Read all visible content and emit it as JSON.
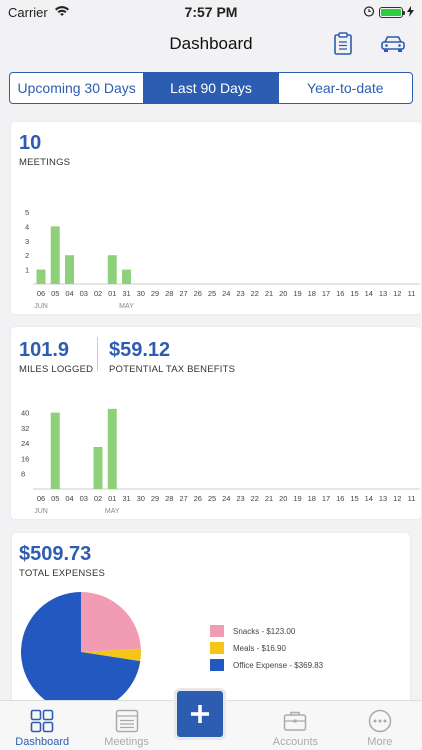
{
  "status": {
    "carrier": "Carrier",
    "time": "7:57 PM"
  },
  "nav": {
    "title": "Dashboard"
  },
  "segments": [
    {
      "label": "Upcoming 30 Days",
      "active": false
    },
    {
      "label": "Last 90 Days",
      "active": true
    },
    {
      "label": "Year-to-date",
      "active": false
    }
  ],
  "meetings": {
    "count": "10",
    "label": "MEETINGS"
  },
  "miles": {
    "value": "101.9",
    "label": "MILES LOGGED",
    "tax_value": "$59.12",
    "tax_label": "POTENTIAL TAX BENEFITS"
  },
  "expenses": {
    "total": "$509.73",
    "label": "TOTAL EXPENSES",
    "legend": [
      {
        "label": "Snacks - $123.00",
        "color": "#f29bb5"
      },
      {
        "label": "Meals - $16.90",
        "color": "#f5c518"
      },
      {
        "label": "Office Expense - $369.83",
        "color": "#2358c0"
      }
    ]
  },
  "tabs": [
    {
      "label": "Dashboard",
      "icon": "grid-icon",
      "active": true
    },
    {
      "label": "Meetings",
      "icon": "list-icon",
      "active": false
    },
    {
      "label": "Accounts",
      "icon": "briefcase-icon",
      "active": false
    },
    {
      "label": "More",
      "icon": "more-icon",
      "active": false
    }
  ],
  "chart_data": [
    {
      "type": "bar",
      "categories": [
        "06",
        "05",
        "04",
        "03",
        "02",
        "01",
        "31",
        "30",
        "29",
        "28",
        "27",
        "26",
        "25",
        "24",
        "23",
        "22",
        "21",
        "20",
        "19",
        "18",
        "17",
        "16",
        "15",
        "14",
        "13",
        "12",
        "11"
      ],
      "month_labels": [
        {
          "label": "JUN",
          "index": 0
        },
        {
          "label": "MAY",
          "index": 6
        }
      ],
      "values": [
        1,
        4,
        2,
        0,
        0,
        2,
        1,
        0,
        0,
        0,
        0,
        0,
        0,
        0,
        0,
        0,
        0,
        0,
        0,
        0,
        0,
        0,
        0,
        0,
        0,
        0,
        0
      ],
      "yticks": [
        1,
        2,
        3,
        4,
        5
      ],
      "ylim": [
        0,
        5
      ],
      "color": "#8fd07a"
    },
    {
      "type": "bar",
      "categories": [
        "06",
        "05",
        "04",
        "03",
        "02",
        "01",
        "31",
        "30",
        "29",
        "28",
        "27",
        "26",
        "25",
        "24",
        "23",
        "22",
        "21",
        "20",
        "19",
        "18",
        "17",
        "16",
        "15",
        "14",
        "13",
        "12",
        "11"
      ],
      "month_labels": [
        {
          "label": "JUN",
          "index": 0
        },
        {
          "label": "MAY",
          "index": 5
        }
      ],
      "values": [
        0,
        40,
        0,
        0,
        22,
        42,
        0,
        0,
        0,
        0,
        0,
        0,
        0,
        0,
        0,
        0,
        0,
        0,
        0,
        0,
        0,
        0,
        0,
        0,
        0,
        0,
        0
      ],
      "yticks": [
        8,
        16,
        24,
        32,
        40
      ],
      "ylim": [
        0,
        44
      ],
      "color": "#8fd07a"
    },
    {
      "type": "pie",
      "categories": [
        "Snacks",
        "Meals",
        "Office Expense"
      ],
      "values": [
        123.0,
        16.9,
        369.83
      ],
      "colors": [
        "#f29bb5",
        "#f5c518",
        "#2358c0"
      ]
    }
  ]
}
